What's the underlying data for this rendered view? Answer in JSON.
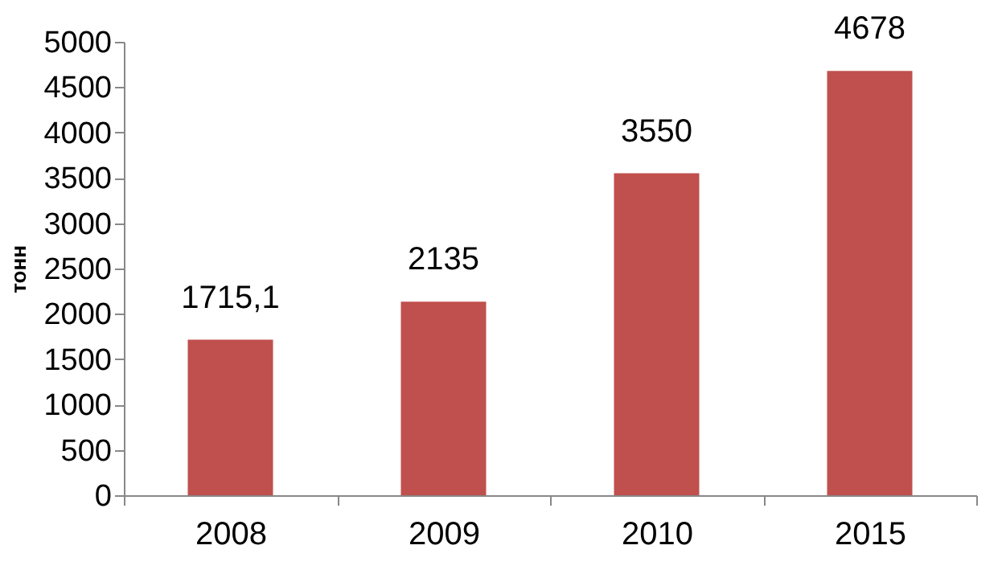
{
  "chart_data": {
    "type": "bar",
    "ylabel": "тонн",
    "categories": [
      "2008",
      "2009",
      "2010",
      "2015"
    ],
    "values": [
      1715.1,
      2135,
      3550,
      4678
    ],
    "color": "#c0504d",
    "value_labels": [
      "1715,1",
      "2135",
      "3550",
      "4678"
    ],
    "ylim": [
      0,
      5000
    ],
    "yticks": [
      0,
      500,
      1000,
      1500,
      2000,
      2500,
      3000,
      3500,
      4000,
      4500,
      5000
    ],
    "grid": false
  }
}
